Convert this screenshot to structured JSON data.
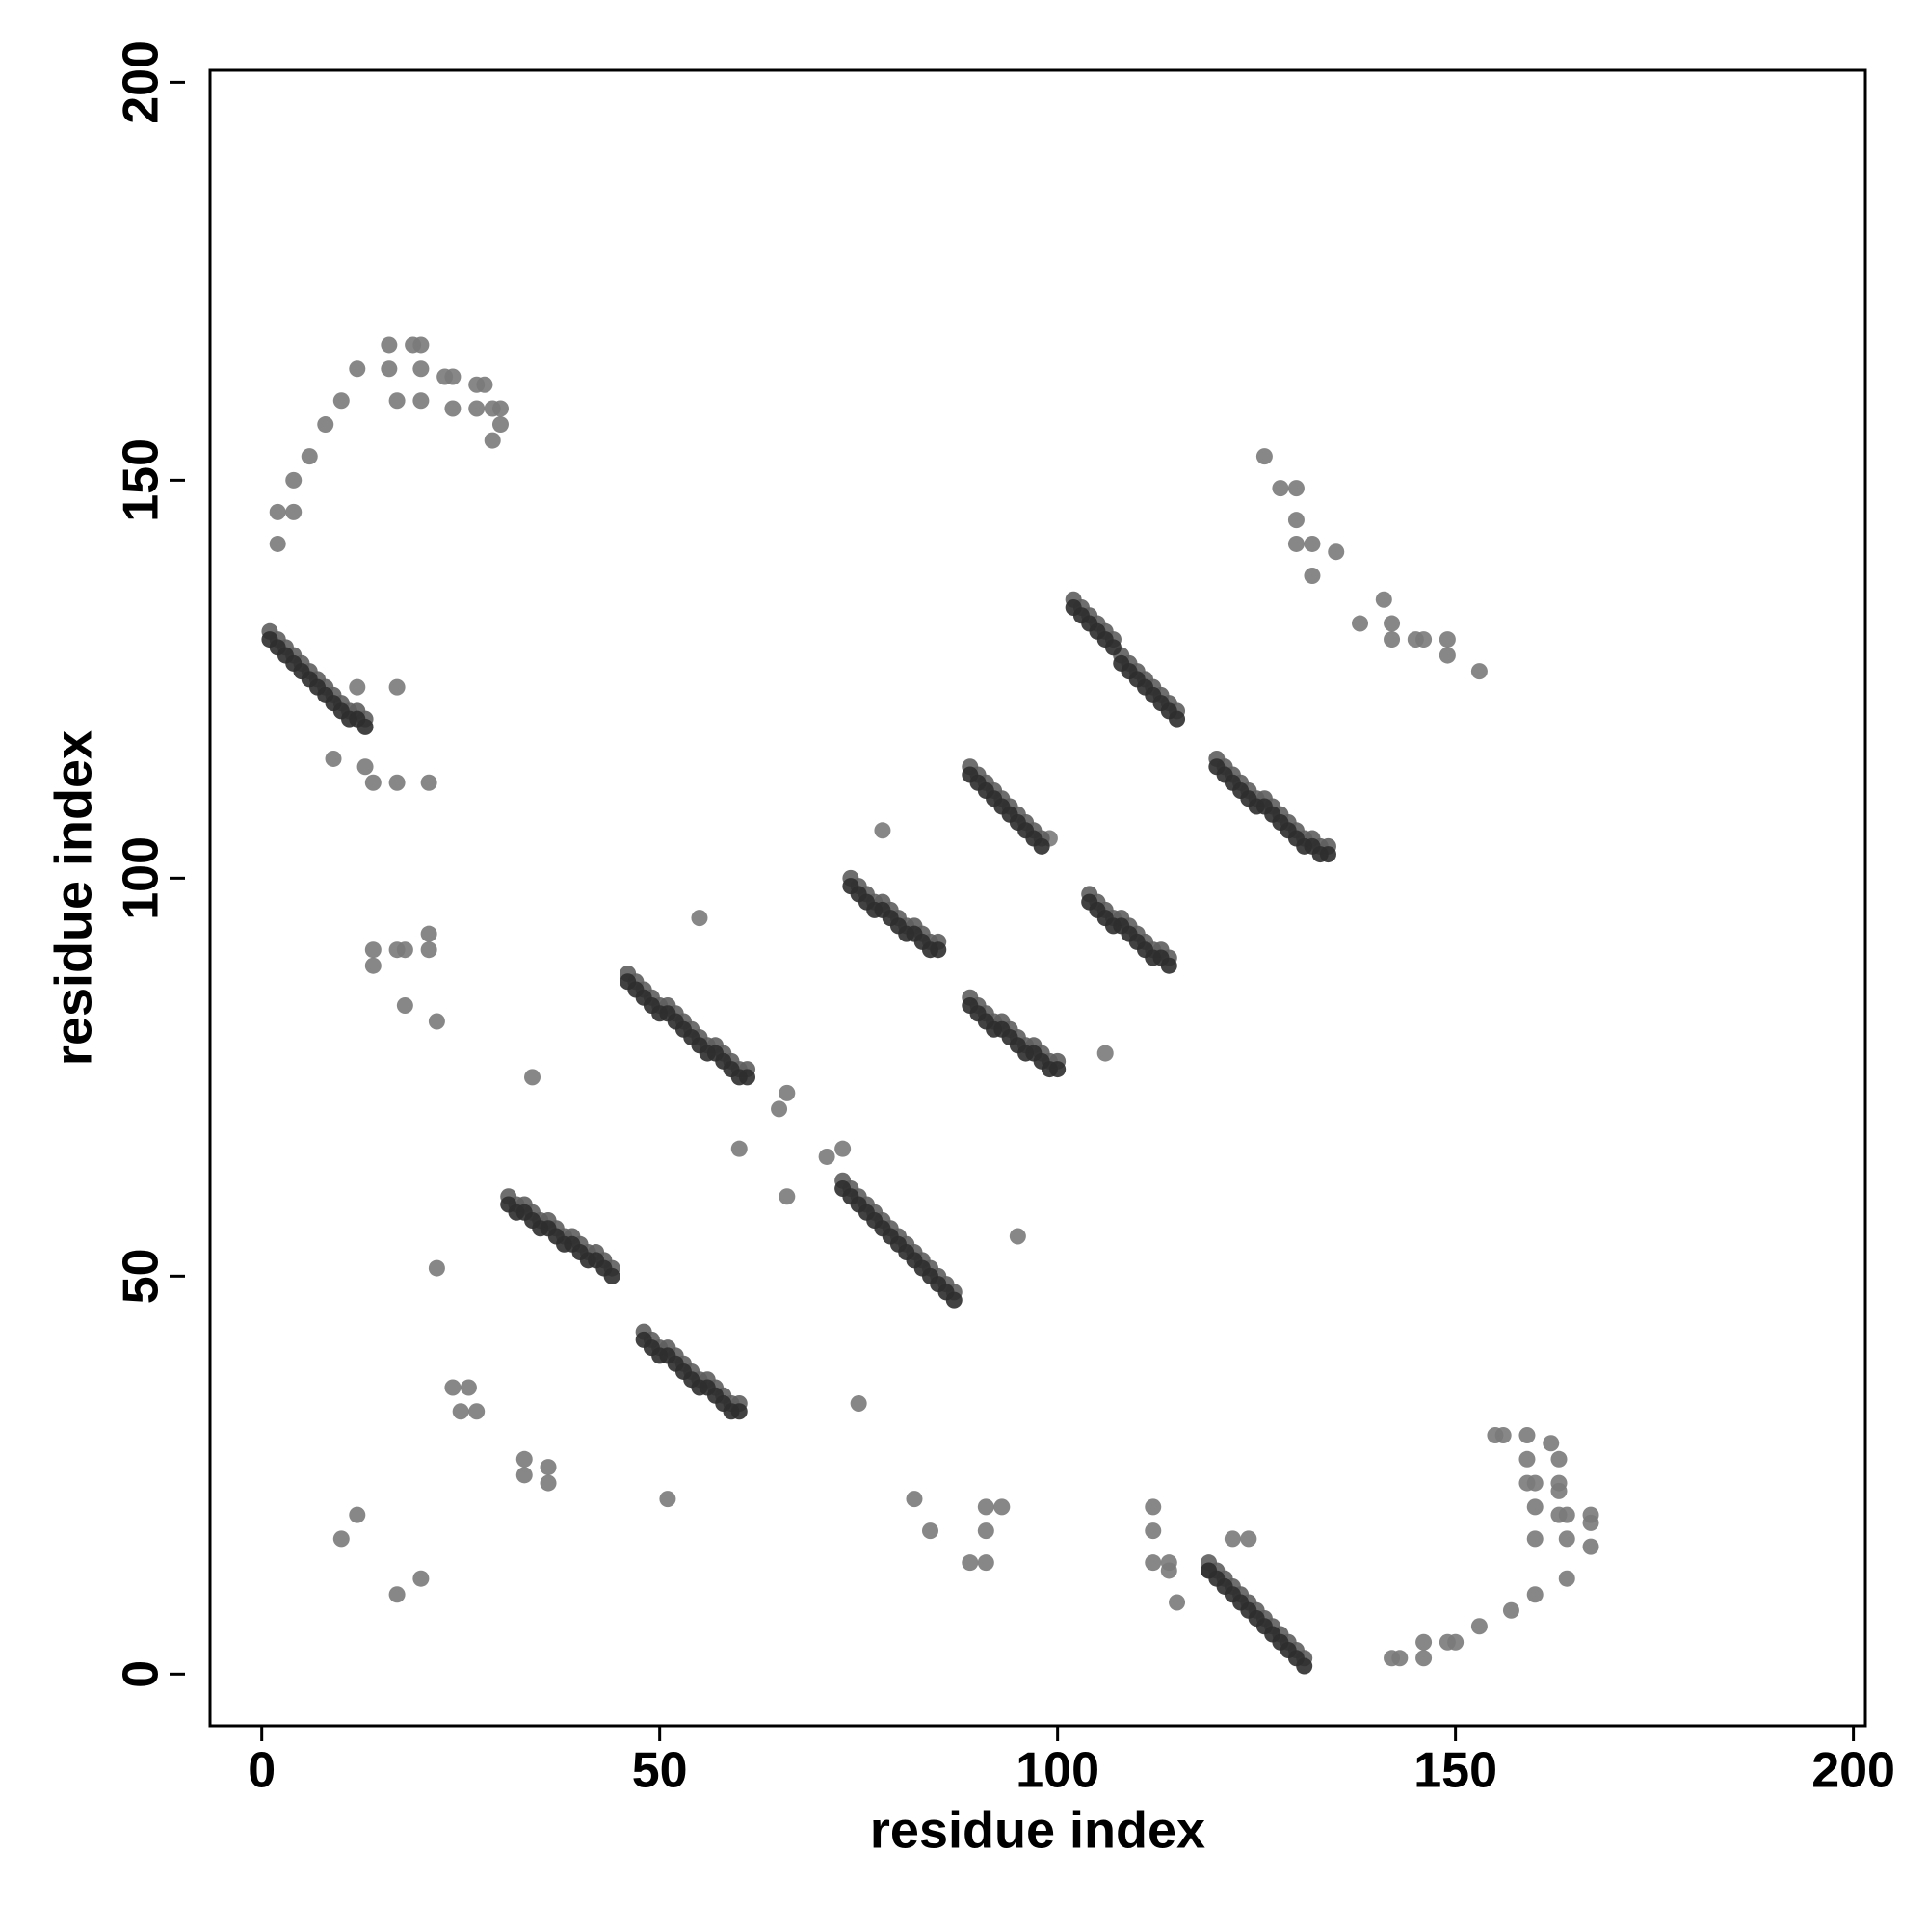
{
  "chart_data": {
    "type": "scatter",
    "x_label": "residue index",
    "y_label": "residue index",
    "xlim": [
      -6.5,
      201.5
    ],
    "ylim": [
      -6.5,
      201.5
    ],
    "xticks": [
      0,
      50,
      100,
      150,
      200
    ],
    "yticks": [
      0,
      50,
      100,
      150,
      200
    ],
    "grid": false,
    "series": [
      {
        "color": "#2e2e2e",
        "x": [
          1,
          2,
          3,
          4,
          5,
          6,
          7,
          8,
          9,
          10,
          11,
          12,
          13,
          31,
          32,
          33,
          34,
          35,
          36,
          37,
          38,
          39,
          40,
          41,
          42,
          43,
          44,
          48,
          49,
          50,
          51,
          52,
          53,
          54,
          55,
          56,
          57,
          58,
          59,
          60,
          46,
          47,
          48,
          49,
          50,
          51,
          52,
          53,
          54,
          55,
          56,
          57,
          58,
          59,
          60,
          61,
          73,
          74,
          75,
          76,
          77,
          78,
          79,
          80,
          81,
          82,
          83,
          84,
          85,
          86,
          87,
          74,
          75,
          76,
          77,
          78,
          79,
          80,
          81,
          82,
          83,
          84,
          85,
          89,
          90,
          91,
          92,
          93,
          94,
          95,
          96,
          97,
          98,
          89,
          90,
          91,
          92,
          93,
          94,
          95,
          96,
          97,
          98,
          99,
          100,
          102,
          103,
          104,
          105,
          106,
          107,
          108,
          109,
          110,
          111,
          112,
          113,
          114,
          115,
          104,
          105,
          106,
          107,
          108,
          109,
          110,
          111,
          112,
          113,
          114,
          120,
          121,
          122,
          123,
          124,
          125,
          126,
          127,
          128,
          129,
          130,
          131,
          132,
          133,
          134,
          119,
          120,
          121,
          122,
          123,
          124,
          125,
          126,
          127,
          128,
          129,
          130,
          131
        ],
        "values": [
          130,
          129,
          128,
          127,
          126,
          125,
          124,
          123,
          122,
          121,
          120,
          120,
          119,
          59,
          58,
          58,
          57,
          56,
          56,
          55,
          54,
          54,
          53,
          52,
          52,
          51,
          50,
          42,
          41,
          40,
          40,
          39,
          38,
          37,
          36,
          36,
          35,
          34,
          33,
          33,
          87,
          86,
          85,
          84,
          83,
          83,
          82,
          81,
          80,
          79,
          78,
          78,
          77,
          76,
          75,
          75,
          61,
          60,
          59,
          58,
          57,
          56,
          55,
          54,
          53,
          52,
          51,
          50,
          49,
          48,
          47,
          99,
          98,
          97,
          96,
          96,
          95,
          94,
          93,
          93,
          92,
          91,
          91,
          113,
          112,
          111,
          110,
          109,
          108,
          107,
          106,
          105,
          104,
          84,
          83,
          82,
          81,
          81,
          80,
          79,
          78,
          78,
          77,
          76,
          76,
          134,
          133,
          132,
          131,
          130,
          129,
          127,
          126,
          125,
          124,
          123,
          122,
          121,
          120,
          97,
          96,
          95,
          94,
          94,
          93,
          92,
          91,
          90,
          90,
          89,
          114,
          113,
          112,
          111,
          110,
          109,
          109,
          108,
          107,
          106,
          105,
          104,
          104,
          103,
          103,
          13,
          12,
          11,
          10,
          9,
          8,
          7,
          6,
          5,
          4,
          3,
          2,
          1
        ]
      },
      {
        "color": "#5e5e5e",
        "x": [
          1,
          2,
          3,
          4,
          5,
          6,
          7,
          8,
          9,
          10,
          11,
          12,
          13,
          31,
          32,
          33,
          34,
          35,
          36,
          37,
          38,
          39,
          40,
          41,
          42,
          43,
          44,
          48,
          49,
          50,
          51,
          52,
          53,
          54,
          55,
          56,
          57,
          58,
          59,
          60,
          46,
          47,
          48,
          49,
          50,
          51,
          52,
          53,
          54,
          55,
          56,
          57,
          58,
          59,
          60,
          61,
          73,
          74,
          75,
          76,
          77,
          78,
          79,
          80,
          81,
          82,
          83,
          84,
          85,
          86,
          87,
          74,
          75,
          76,
          77,
          78,
          79,
          80,
          81,
          82,
          83,
          84,
          85,
          89,
          90,
          91,
          92,
          93,
          94,
          95,
          96,
          97,
          98,
          89,
          90,
          91,
          92,
          93,
          94,
          95,
          96,
          97,
          98,
          99,
          100,
          102,
          103,
          104,
          105,
          106,
          107,
          108,
          109,
          110,
          111,
          112,
          113,
          114,
          115,
          104,
          105,
          106,
          107,
          108,
          109,
          110,
          111,
          112,
          113,
          114,
          120,
          121,
          122,
          123,
          124,
          125,
          126,
          127,
          128,
          129,
          130,
          131,
          132,
          133,
          134,
          119,
          120,
          121,
          122,
          123,
          124,
          125,
          126,
          127,
          128,
          129,
          130,
          131
        ],
        "values": [
          131,
          130,
          129,
          128,
          127,
          126,
          125,
          124,
          123,
          122,
          121,
          121,
          120,
          60,
          59,
          59,
          58,
          57,
          57,
          56,
          55,
          55,
          54,
          53,
          53,
          52,
          51,
          43,
          42,
          41,
          41,
          40,
          39,
          38,
          37,
          37,
          36,
          35,
          34,
          34,
          88,
          87,
          86,
          85,
          84,
          84,
          83,
          82,
          81,
          80,
          79,
          79,
          78,
          77,
          76,
          76,
          62,
          61,
          60,
          59,
          58,
          57,
          56,
          55,
          54,
          53,
          52,
          51,
          50,
          49,
          48,
          100,
          99,
          98,
          97,
          97,
          96,
          95,
          94,
          94,
          93,
          92,
          92,
          114,
          113,
          112,
          111,
          110,
          109,
          108,
          107,
          106,
          105,
          85,
          84,
          83,
          82,
          82,
          81,
          80,
          79,
          79,
          78,
          77,
          77,
          135,
          134,
          133,
          132,
          131,
          130,
          128,
          127,
          126,
          125,
          124,
          123,
          122,
          121,
          98,
          97,
          96,
          95,
          95,
          94,
          93,
          92,
          91,
          91,
          90,
          115,
          114,
          113,
          112,
          111,
          110,
          110,
          109,
          108,
          107,
          106,
          105,
          105,
          104,
          104,
          14,
          13,
          12,
          11,
          10,
          9,
          8,
          7,
          6,
          5,
          4,
          3,
          2
        ]
      },
      {
        "color": "#7a7a7a",
        "x": [
          2,
          2,
          4,
          4,
          6,
          8,
          10,
          12,
          16,
          19,
          20,
          16,
          17,
          20,
          20,
          23,
          24,
          24,
          27,
          28,
          27,
          29,
          30,
          29,
          30,
          12,
          17,
          9,
          13,
          14,
          17,
          21,
          14,
          14,
          17,
          18,
          21,
          21,
          18,
          22,
          34,
          55,
          22,
          24,
          26,
          25,
          27,
          33,
          33,
          36,
          36,
          10,
          12,
          17,
          20,
          51,
          60,
          65,
          66,
          66,
          71,
          73,
          78,
          75,
          82,
          84,
          89,
          91,
          91,
          91,
          93,
          95,
          99,
          106,
          112,
          112,
          112,
          114,
          114,
          115,
          119,
          122,
          124,
          126,
          128,
          130,
          130,
          130,
          132,
          132,
          135,
          138,
          141,
          142,
          142,
          145,
          146,
          149,
          149,
          153,
          142,
          143,
          146,
          146,
          149,
          150,
          153,
          157,
          160,
          160,
          160,
          160,
          159,
          159,
          159,
          155,
          156,
          162,
          163,
          163,
          163,
          163,
          164,
          164,
          164,
          167,
          167,
          167
        ],
        "values": [
          142,
          146,
          146,
          150,
          153,
          157,
          160,
          164,
          167,
          167,
          167,
          164,
          160,
          164,
          160,
          163,
          163,
          159,
          162,
          162,
          159,
          159,
          159,
          155,
          157,
          124,
          124,
          115,
          114,
          112,
          112,
          112,
          91,
          89,
          91,
          91,
          93,
          91,
          84,
          82,
          75,
          95,
          51,
          36,
          36,
          33,
          33,
          27,
          25,
          26,
          24,
          17,
          20,
          10,
          12,
          22,
          66,
          71,
          73,
          60,
          65,
          66,
          106,
          34,
          22,
          18,
          14,
          14,
          18,
          21,
          21,
          55,
          105,
          78,
          21,
          18,
          14,
          14,
          13,
          9,
          13,
          17,
          17,
          153,
          149,
          149,
          145,
          142,
          142,
          138,
          141,
          132,
          135,
          132,
          130,
          130,
          130,
          130,
          128,
          126,
          2,
          2,
          4,
          2,
          4,
          4,
          6,
          8,
          10,
          17,
          21,
          24,
          24,
          27,
          30,
          30,
          30,
          29,
          27,
          24,
          23,
          20,
          20,
          17,
          12,
          20,
          16,
          19
        ]
      }
    ]
  }
}
